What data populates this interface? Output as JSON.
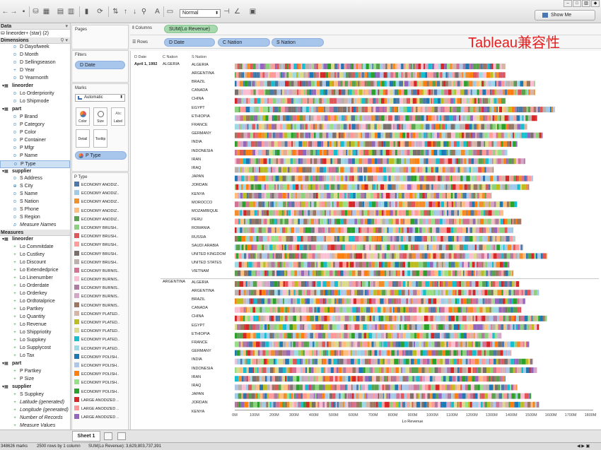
{
  "toolbar": {
    "fit_value": "Normal",
    "show_me_label": "Show Me"
  },
  "watermark": "Tableau兼容性",
  "data_pane": {
    "header": "Data",
    "datasource": "lineorder+ (star) (2)",
    "dimensions_header": "Dimensions",
    "dimensions": [
      {
        "label": "D Dayofweek",
        "kind": "field",
        "icon": "Abc"
      },
      {
        "label": "D Month",
        "kind": "field",
        "icon": "Abc"
      },
      {
        "label": "D Sellingseason",
        "kind": "field",
        "icon": "Abc"
      },
      {
        "label": "D Year",
        "kind": "field",
        "icon": "#"
      },
      {
        "label": "D Yearmonth",
        "kind": "field",
        "icon": "Abc"
      },
      {
        "label": "lineorder",
        "kind": "table"
      },
      {
        "label": "Lo Orderpriority",
        "kind": "field",
        "icon": "Abc"
      },
      {
        "label": "Lo Shipmode",
        "kind": "field",
        "icon": "Abc"
      },
      {
        "label": "part",
        "kind": "table"
      },
      {
        "label": "P Brand",
        "kind": "field",
        "icon": "Abc"
      },
      {
        "label": "P Category",
        "kind": "field",
        "icon": "Abc"
      },
      {
        "label": "P Color",
        "kind": "field",
        "icon": "Abc"
      },
      {
        "label": "P Container",
        "kind": "field",
        "icon": "Abc"
      },
      {
        "label": "P Mfgr",
        "kind": "field",
        "icon": "Abc"
      },
      {
        "label": "P Name",
        "kind": "field",
        "icon": "Abc"
      },
      {
        "label": "P Type",
        "kind": "field",
        "icon": "Abc",
        "selected": true
      },
      {
        "label": "supplier",
        "kind": "table"
      },
      {
        "label": "S Address",
        "kind": "field",
        "icon": "Abc"
      },
      {
        "label": "S City",
        "kind": "field",
        "icon": "geo"
      },
      {
        "label": "S Name",
        "kind": "field",
        "icon": "Abc"
      },
      {
        "label": "S Nation",
        "kind": "field",
        "icon": "Abc"
      },
      {
        "label": "S Phone",
        "kind": "field",
        "icon": "Abc"
      },
      {
        "label": "S Region",
        "kind": "field",
        "icon": "Abc"
      },
      {
        "label": "Measure Names",
        "kind": "field",
        "icon": "Abc",
        "italic": true
      }
    ],
    "measures_header": "Measures",
    "measures": [
      {
        "label": "lineorder",
        "kind": "table"
      },
      {
        "label": "Lo Commitdate",
        "kind": "field"
      },
      {
        "label": "Lo Custkey",
        "kind": "field"
      },
      {
        "label": "Lo Discount",
        "kind": "field"
      },
      {
        "label": "Lo Extendedprice",
        "kind": "field"
      },
      {
        "label": "Lo Linenumber",
        "kind": "field"
      },
      {
        "label": "Lo Orderdate",
        "kind": "field"
      },
      {
        "label": "Lo Orderkey",
        "kind": "field"
      },
      {
        "label": "Lo Ordtotalprice",
        "kind": "field"
      },
      {
        "label": "Lo Partkey",
        "kind": "field"
      },
      {
        "label": "Lo Quantity",
        "kind": "field"
      },
      {
        "label": "Lo Revenue",
        "kind": "field"
      },
      {
        "label": "Lo Shippriotity",
        "kind": "field"
      },
      {
        "label": "Lo Suppkey",
        "kind": "field"
      },
      {
        "label": "Lo Supplycost",
        "kind": "field"
      },
      {
        "label": "Lo Tax",
        "kind": "field"
      },
      {
        "label": "part",
        "kind": "table"
      },
      {
        "label": "P Partkey",
        "kind": "field"
      },
      {
        "label": "P Size",
        "kind": "field"
      },
      {
        "label": "supplier",
        "kind": "table"
      },
      {
        "label": "S Suppkey",
        "kind": "field"
      },
      {
        "label": "Latitude (generated)",
        "kind": "field",
        "italic": true
      },
      {
        "label": "Longitude (generated)",
        "kind": "field",
        "italic": true
      },
      {
        "label": "Number of Records",
        "kind": "field",
        "italic": true
      },
      {
        "label": "Measure Values",
        "kind": "field",
        "italic": true
      }
    ]
  },
  "cards": {
    "pages_title": "Pages",
    "filters_title": "Filters",
    "filter_pill": "D Date",
    "marks_title": "Marks",
    "marks_type": "Automatic",
    "color_label": "Color",
    "size_label": "Size",
    "label_label": "Label",
    "detail_label": "Detail",
    "tooltip_label": "Tooltip",
    "color_pill": "P Type",
    "legend_title": "P Type",
    "legend": [
      {
        "label": "ECONOMY ANODIZ..",
        "color": "#4e79a7"
      },
      {
        "label": "ECONOMY ANODIZ..",
        "color": "#a0cbe8"
      },
      {
        "label": "ECONOMY ANODIZ..",
        "color": "#f28e2b"
      },
      {
        "label": "ECONOMY ANODIZ..",
        "color": "#ffbe7d"
      },
      {
        "label": "ECONOMY ANODIZ..",
        "color": "#59a14f"
      },
      {
        "label": "ECONOMY BRUSH..",
        "color": "#8cd17d"
      },
      {
        "label": "ECONOMY BRUSH..",
        "color": "#e15759"
      },
      {
        "label": "ECONOMY BRUSH..",
        "color": "#ff9d9a"
      },
      {
        "label": "ECONOMY BRUSH..",
        "color": "#79706e"
      },
      {
        "label": "ECONOMY BRUSH..",
        "color": "#bab0ac"
      },
      {
        "label": "ECONOMY BURNIS..",
        "color": "#d37295"
      },
      {
        "label": "ECONOMY BURNIS..",
        "color": "#fabfd2"
      },
      {
        "label": "ECONOMY BURNIS..",
        "color": "#b07aa1"
      },
      {
        "label": "ECONOMY BURNIS..",
        "color": "#d4a6c8"
      },
      {
        "label": "ECONOMY BURNIS..",
        "color": "#9d7660"
      },
      {
        "label": "ECONOMY PLATED..",
        "color": "#d7b5a6"
      },
      {
        "label": "ECONOMY PLATED..",
        "color": "#bcbd22"
      },
      {
        "label": "ECONOMY PLATED..",
        "color": "#dbdb8d"
      },
      {
        "label": "ECONOMY PLATED..",
        "color": "#17becf"
      },
      {
        "label": "ECONOMY PLATED..",
        "color": "#9edae5"
      },
      {
        "label": "ECONOMY POLISH..",
        "color": "#1f77b4"
      },
      {
        "label": "ECONOMY POLISH..",
        "color": "#aec7e8"
      },
      {
        "label": "ECONOMY POLISH..",
        "color": "#ff7f0e"
      },
      {
        "label": "ECONOMY POLISH..",
        "color": "#98df8a"
      },
      {
        "label": "ECONOMY POLISH..",
        "color": "#2ca02c"
      },
      {
        "label": "LARGE ANODIZED ..",
        "color": "#d62728"
      },
      {
        "label": "LARGE ANODIZED ..",
        "color": "#ff9896"
      },
      {
        "label": "LARGE ANODIZED ..",
        "color": "#9467bd"
      }
    ]
  },
  "shelves": {
    "columns_label": "Columns",
    "columns_pill": "SUM(Lo Revenue)",
    "rows_label": "Rows",
    "rows_pills": [
      "D Date",
      "C Nation",
      "S Nation"
    ]
  },
  "chart_data": {
    "type": "bar",
    "subtype": "stacked-horizontal",
    "column_headers": [
      "D Date",
      "C Nation",
      "S Nation"
    ],
    "date": "April 1, 1992",
    "xlabel": "Lo Revenue",
    "x_ticks": [
      "0M",
      "100M",
      "200M",
      "300M",
      "400M",
      "500M",
      "600M",
      "700M",
      "800M",
      "900M",
      "1000M",
      "1100M",
      "1200M",
      "1300M",
      "1400M",
      "1500M",
      "1600M",
      "1700M",
      "1800M"
    ],
    "xlim": [
      0,
      1800
    ],
    "x_unit": "M",
    "stack_dimension": "P Type",
    "grid": false,
    "groups": [
      {
        "c_nation": "ALGERIA",
        "rows": [
          {
            "s_nation": "ALGERIA",
            "value": 1370
          },
          {
            "s_nation": "ARGENTINA",
            "value": 1370
          },
          {
            "s_nation": "BRAZIL",
            "value": 1520
          },
          {
            "s_nation": "CANADA",
            "value": 1520
          },
          {
            "s_nation": "CHINA",
            "value": 1370
          },
          {
            "s_nation": "EGYPT",
            "value": 1620
          },
          {
            "s_nation": "ETHIOPIA",
            "value": 1530
          },
          {
            "s_nation": "FRANCE",
            "value": 1480
          },
          {
            "s_nation": "GERMANY",
            "value": 1560
          },
          {
            "s_nation": "INDIA",
            "value": 1430
          },
          {
            "s_nation": "INDONESIA",
            "value": 1380
          },
          {
            "s_nation": "IRAN",
            "value": 1470
          },
          {
            "s_nation": "IRAQ",
            "value": 1310
          },
          {
            "s_nation": "JAPAN",
            "value": 1510
          },
          {
            "s_nation": "JORDAN",
            "value": 1490
          },
          {
            "s_nation": "KENYA",
            "value": 1300
          },
          {
            "s_nation": "MOROCCO",
            "value": 1430
          },
          {
            "s_nation": "MOZAMBIQUE",
            "value": 1360
          },
          {
            "s_nation": "PERU",
            "value": 1450
          },
          {
            "s_nation": "ROMANIA",
            "value": 1410
          },
          {
            "s_nation": "RUSSIA",
            "value": 1420
          },
          {
            "s_nation": "SAUDI ARABIA",
            "value": 1460
          },
          {
            "s_nation": "UNITED KINGDOM",
            "value": 1580
          },
          {
            "s_nation": "UNITED STATES",
            "value": 1390
          },
          {
            "s_nation": "VIETNAM",
            "value": 1410
          }
        ]
      },
      {
        "c_nation": "ARGENTINA",
        "rows": [
          {
            "s_nation": "ALGERIA",
            "value": 1440
          },
          {
            "s_nation": "ARGENTINA",
            "value": 1540
          },
          {
            "s_nation": "BRAZIL",
            "value": 1470
          },
          {
            "s_nation": "CANADA",
            "value": 1450
          },
          {
            "s_nation": "CHINA",
            "value": 1580
          },
          {
            "s_nation": "EGYPT",
            "value": 1540
          },
          {
            "s_nation": "ETHIOPIA",
            "value": 1350
          },
          {
            "s_nation": "FRANCE",
            "value": 1490
          },
          {
            "s_nation": "GERMANY",
            "value": 1400
          },
          {
            "s_nation": "INDIA",
            "value": 1510
          },
          {
            "s_nation": "INDONESIA",
            "value": 1530
          },
          {
            "s_nation": "IRAN",
            "value": 1370
          },
          {
            "s_nation": "IRAQ",
            "value": 1430
          },
          {
            "s_nation": "JAPAN",
            "value": 1500
          },
          {
            "s_nation": "JORDAN",
            "value": 1540
          },
          {
            "s_nation": "KENYA",
            "value": 1470
          }
        ]
      }
    ]
  },
  "tabs": {
    "sheet": "Sheet 1"
  },
  "status": {
    "marks": "348626 marks",
    "rows_cols": "2500 rows by 1 column",
    "sum": "SUM(Lo Revenue): 3,629,803,737,391"
  }
}
